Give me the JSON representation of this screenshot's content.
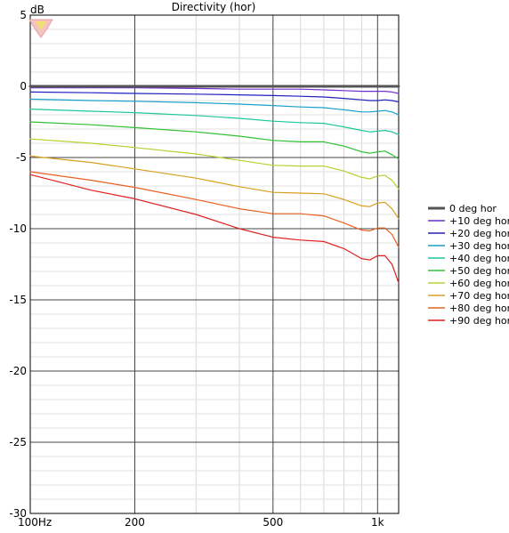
{
  "chart_data": {
    "type": "line",
    "title": "Directivity (hor)",
    "ylabel": "dB",
    "xlabel": "",
    "x_scale": "log",
    "xlim": [
      100,
      1150
    ],
    "ylim": [
      -30,
      5
    ],
    "grid": true,
    "legend_position": "right",
    "x_ticks": [
      {
        "value": 100,
        "label": "100Hz"
      },
      {
        "value": 200,
        "label": "200"
      },
      {
        "value": 500,
        "label": "500"
      },
      {
        "value": 1000,
        "label": "1k"
      }
    ],
    "x_minor_gridlines": [
      300,
      400,
      600,
      700,
      800,
      900
    ],
    "y_ticks": [
      {
        "value": 5,
        "label": "5"
      },
      {
        "value": 0,
        "label": "0"
      },
      {
        "value": -5,
        "label": "-5"
      },
      {
        "value": -10,
        "label": "-10"
      },
      {
        "value": -15,
        "label": "-15"
      },
      {
        "value": -20,
        "label": "-20"
      },
      {
        "value": -25,
        "label": "-25"
      },
      {
        "value": -30,
        "label": "-30"
      }
    ],
    "x": [
      100,
      150,
      200,
      300,
      400,
      500,
      600,
      700,
      800,
      900,
      950,
      1000,
      1050,
      1100,
      1150
    ],
    "series": [
      {
        "name": "0 deg hor",
        "color": "#555555",
        "values": [
          0,
          0,
          0,
          0,
          0,
          0,
          0,
          0,
          0,
          0,
          0,
          0,
          0,
          0,
          0
        ]
      },
      {
        "name": "+10 deg hor",
        "color": "#7030d0",
        "values": [
          -0.1,
          -0.1,
          -0.1,
          -0.15,
          -0.2,
          -0.2,
          -0.2,
          -0.25,
          -0.3,
          -0.35,
          -0.35,
          -0.35,
          -0.35,
          -0.4,
          -0.5
        ]
      },
      {
        "name": "+20 deg hor",
        "color": "#2020c0",
        "values": [
          -0.4,
          -0.45,
          -0.5,
          -0.55,
          -0.6,
          -0.65,
          -0.7,
          -0.75,
          -0.85,
          -0.95,
          -1.0,
          -1.0,
          -0.95,
          -1.0,
          -1.1
        ]
      },
      {
        "name": "+30 deg hor",
        "color": "#1aa0cc",
        "values": [
          -0.9,
          -1.0,
          -1.05,
          -1.15,
          -1.25,
          -1.35,
          -1.45,
          -1.5,
          -1.65,
          -1.8,
          -1.8,
          -1.75,
          -1.7,
          -1.8,
          -2.0
        ]
      },
      {
        "name": "+40 deg hor",
        "color": "#1ac899",
        "values": [
          -1.6,
          -1.75,
          -1.85,
          -2.05,
          -2.25,
          -2.45,
          -2.55,
          -2.6,
          -2.85,
          -3.1,
          -3.2,
          -3.15,
          -3.1,
          -3.2,
          -3.4
        ]
      },
      {
        "name": "+50 deg hor",
        "color": "#30c030",
        "values": [
          -2.5,
          -2.7,
          -2.9,
          -3.2,
          -3.5,
          -3.8,
          -3.9,
          -3.9,
          -4.2,
          -4.6,
          -4.7,
          -4.6,
          -4.55,
          -4.8,
          -5.1
        ]
      },
      {
        "name": "+60 deg hor",
        "color": "#b8d030",
        "values": [
          -3.7,
          -4.0,
          -4.3,
          -4.75,
          -5.2,
          -5.55,
          -5.6,
          -5.6,
          -5.95,
          -6.4,
          -6.5,
          -6.3,
          -6.25,
          -6.6,
          -7.2
        ]
      },
      {
        "name": "+70 deg hor",
        "color": "#d8a020",
        "values": [
          -4.9,
          -5.35,
          -5.8,
          -6.45,
          -7.05,
          -7.45,
          -7.5,
          -7.55,
          -7.95,
          -8.4,
          -8.45,
          -8.2,
          -8.15,
          -8.6,
          -9.3
        ]
      },
      {
        "name": "+80 deg hor",
        "color": "#e86020",
        "values": [
          -6.0,
          -6.6,
          -7.1,
          -7.95,
          -8.6,
          -8.95,
          -8.95,
          -9.1,
          -9.6,
          -10.1,
          -10.15,
          -9.95,
          -9.95,
          -10.4,
          -11.3
        ]
      },
      {
        "name": "+90 deg hor",
        "color": "#e02020",
        "values": [
          -6.2,
          -7.3,
          -7.9,
          -9.0,
          -10.0,
          -10.6,
          -10.8,
          -10.9,
          -11.4,
          -12.1,
          -12.2,
          -11.9,
          -11.9,
          -12.5,
          -13.8
        ]
      }
    ]
  }
}
